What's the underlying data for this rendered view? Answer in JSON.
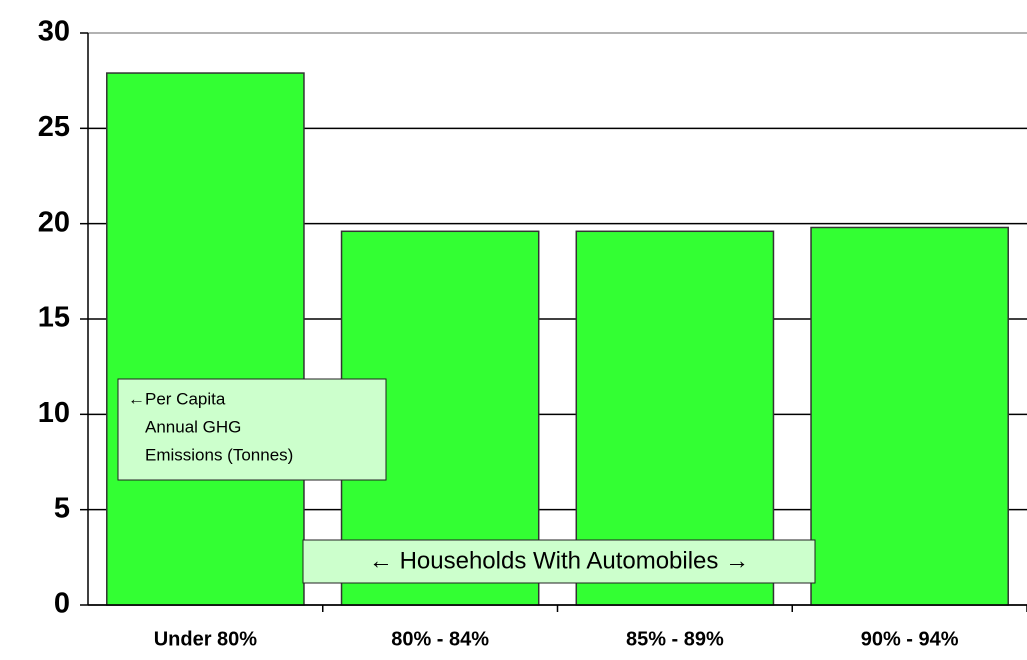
{
  "chart_data": {
    "type": "bar",
    "categories": [
      "Under 80%",
      "80% - 84%",
      "85% - 89%",
      "90% - 94%"
    ],
    "values": [
      27.9,
      19.6,
      19.6,
      19.8
    ],
    "color": "#33ff33",
    "ylim": [
      0,
      30
    ],
    "yticks": [
      0,
      5,
      10,
      15,
      20,
      25,
      30
    ],
    "grid": true,
    "annotations": [
      {
        "lines": [
          "←Per Capita",
          "Annual GHG",
          "Emissions (Tonnes)"
        ]
      },
      {
        "text": "← Households With Automobiles →"
      }
    ]
  }
}
